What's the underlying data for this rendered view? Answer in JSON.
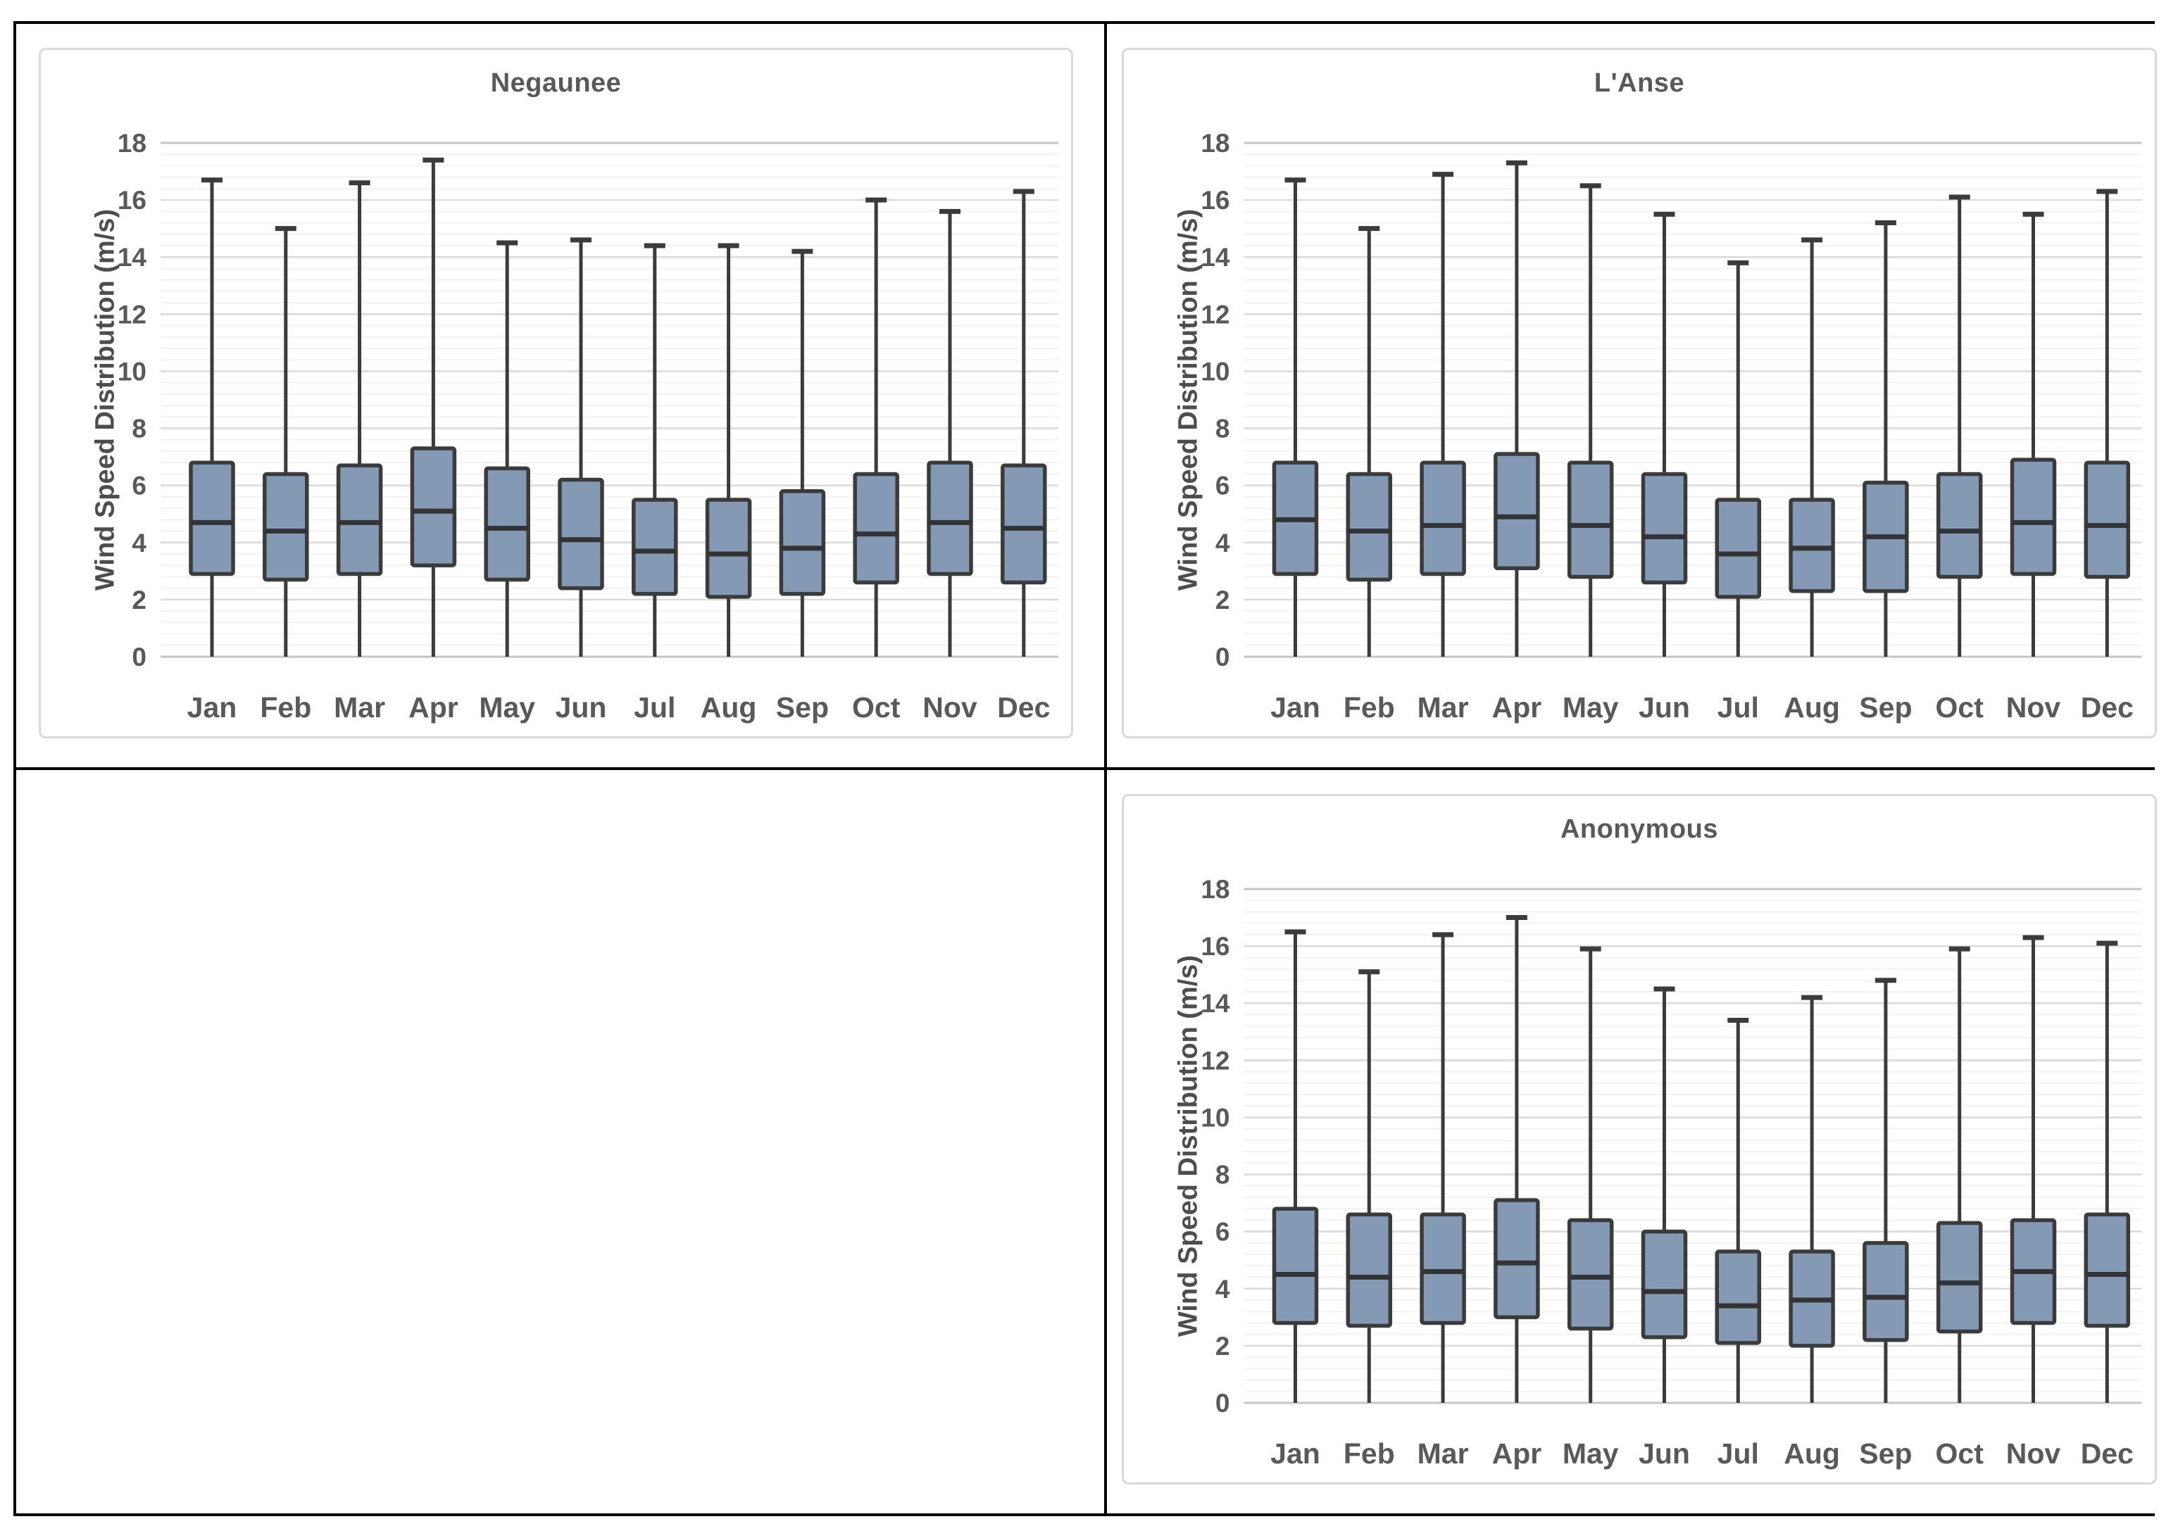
{
  "page": {
    "background": "#ffffff"
  },
  "table": {
    "border_color": "#000000",
    "cells": [
      "chart-negaunee",
      "chart-lanse",
      "empty",
      "chart-anonymous"
    ]
  },
  "charts_shared": {
    "ylabel": "Wind Speed Distribution (m/s)",
    "y_tick_labels": [
      "0",
      "2",
      "4",
      "6",
      "8",
      "10",
      "12",
      "14",
      "16",
      "18"
    ],
    "colors": {
      "box_fill": "#8499b4",
      "box_stroke": "#3b3b3b",
      "whisker": "#3b3b3b",
      "median": "#333333",
      "grid_major": "#dadada",
      "grid_minor": "#f2f2f2",
      "grid_boundary": "#c6c6c6",
      "text": "#595959",
      "chart_border": "#d9d9d9"
    }
  },
  "chart_data": [
    {
      "type": "boxplot",
      "title": "Negaunee",
      "xlabel": "",
      "ylabel": "Wind Speed Distribution (m/s)",
      "ylim": [
        0,
        18
      ],
      "y_tick_step": 2,
      "grid": "on",
      "legend": "none",
      "categories": [
        "Jan",
        "Feb",
        "Mar",
        "Apr",
        "May",
        "Jun",
        "Jul",
        "Aug",
        "Sep",
        "Oct",
        "Nov",
        "Dec"
      ],
      "series": [
        {
          "name": "min",
          "values": [
            0,
            0,
            0,
            0,
            0,
            0,
            0,
            0,
            0,
            0,
            0,
            0
          ]
        },
        {
          "name": "q1",
          "values": [
            2.9,
            2.7,
            2.9,
            3.2,
            2.7,
            2.4,
            2.2,
            2.1,
            2.2,
            2.6,
            2.9,
            2.6
          ]
        },
        {
          "name": "median",
          "values": [
            4.7,
            4.4,
            4.7,
            5.1,
            4.5,
            4.1,
            3.7,
            3.6,
            3.8,
            4.3,
            4.7,
            4.5
          ]
        },
        {
          "name": "q3",
          "values": [
            6.8,
            6.4,
            6.7,
            7.3,
            6.6,
            6.2,
            5.5,
            5.5,
            5.8,
            6.4,
            6.8,
            6.7
          ]
        },
        {
          "name": "max",
          "values": [
            16.7,
            15,
            16.6,
            17.4,
            14.5,
            14.6,
            14.4,
            14.4,
            14.2,
            16,
            15.6,
            16.3
          ]
        }
      ]
    },
    {
      "type": "boxplot",
      "title": "L'Anse",
      "xlabel": "",
      "ylabel": "Wind Speed Distribution (m/s)",
      "ylim": [
        0,
        18
      ],
      "y_tick_step": 2,
      "grid": "on",
      "legend": "none",
      "categories": [
        "Jan",
        "Feb",
        "Mar",
        "Apr",
        "May",
        "Jun",
        "Jul",
        "Aug",
        "Sep",
        "Oct",
        "Nov",
        "Dec"
      ],
      "series": [
        {
          "name": "min",
          "values": [
            0,
            0,
            0,
            0,
            0,
            0,
            0,
            0,
            0,
            0,
            0,
            0
          ]
        },
        {
          "name": "q1",
          "values": [
            2.9,
            2.7,
            2.9,
            3.1,
            2.8,
            2.6,
            2.1,
            2.3,
            2.3,
            2.8,
            2.9,
            2.8
          ]
        },
        {
          "name": "median",
          "values": [
            4.8,
            4.4,
            4.6,
            4.9,
            4.6,
            4.2,
            3.6,
            3.8,
            4.2,
            4.4,
            4.7,
            4.6
          ]
        },
        {
          "name": "q3",
          "values": [
            6.8,
            6.4,
            6.8,
            7.1,
            6.8,
            6.4,
            5.5,
            5.5,
            6.1,
            6.4,
            6.9,
            6.8
          ]
        },
        {
          "name": "max",
          "values": [
            16.7,
            15,
            16.9,
            17.3,
            16.5,
            15.5,
            13.8,
            14.6,
            15.2,
            16.1,
            15.5,
            16.3
          ]
        }
      ]
    },
    {
      "type": "boxplot",
      "title": "Anonymous",
      "xlabel": "",
      "ylabel": "Wind Speed Distribution (m/s)",
      "ylim": [
        0,
        18
      ],
      "y_tick_step": 2,
      "grid": "on",
      "legend": "none",
      "categories": [
        "Jan",
        "Feb",
        "Mar",
        "Apr",
        "May",
        "Jun",
        "Jul",
        "Aug",
        "Sep",
        "Oct",
        "Nov",
        "Dec"
      ],
      "series": [
        {
          "name": "min",
          "values": [
            0,
            0,
            0,
            0,
            0,
            0,
            0,
            0,
            0,
            0,
            0,
            0
          ]
        },
        {
          "name": "q1",
          "values": [
            2.8,
            2.7,
            2.8,
            3,
            2.6,
            2.3,
            2.1,
            2,
            2.2,
            2.5,
            2.8,
            2.7
          ]
        },
        {
          "name": "median",
          "values": [
            4.5,
            4.4,
            4.6,
            4.9,
            4.4,
            3.9,
            3.4,
            3.6,
            3.7,
            4.2,
            4.6,
            4.5
          ]
        },
        {
          "name": "q3",
          "values": [
            6.8,
            6.6,
            6.6,
            7.1,
            6.4,
            6,
            5.3,
            5.3,
            5.6,
            6.3,
            6.4,
            6.6
          ]
        },
        {
          "name": "max",
          "values": [
            16.5,
            15.1,
            16.4,
            17,
            15.9,
            14.5,
            13.4,
            14.2,
            14.8,
            15.9,
            16.3,
            16.1
          ]
        }
      ]
    }
  ]
}
